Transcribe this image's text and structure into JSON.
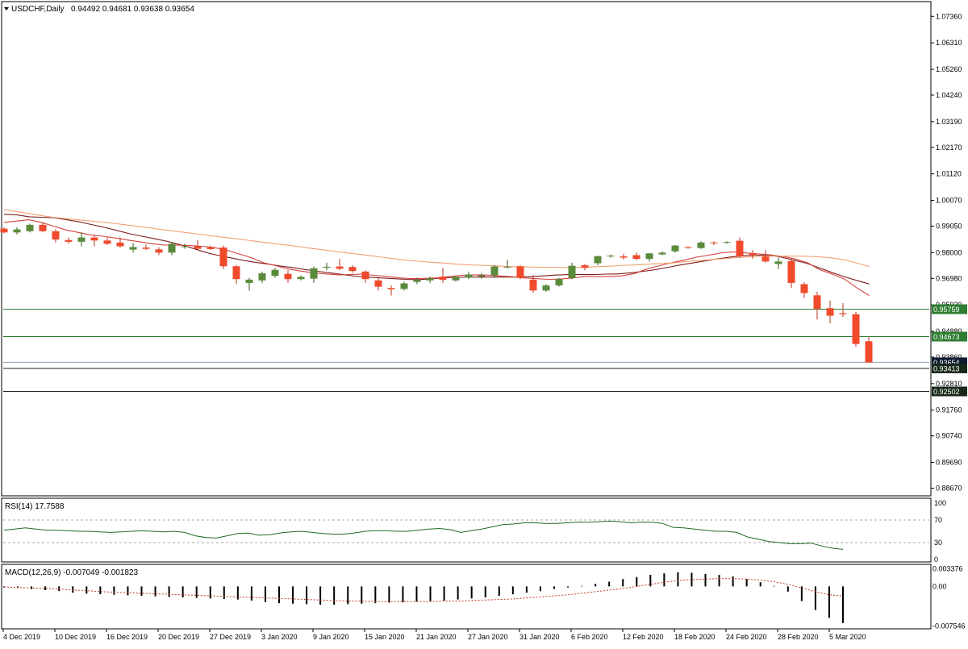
{
  "header": {
    "symbol": "USDCHF,Daily",
    "ohlc": "0.94492 0.94681 0.93638 0.93654"
  },
  "rsi_header": "RSI(14) 17.7588",
  "macd_header": "MACD(12,26,9) -0.007049 -0.001823",
  "colors": {
    "bull": "#5a8a3c",
    "bear": "#f04a2d",
    "level_line": "#2e7d32",
    "ma_slow": "#7b1d1d",
    "ma_mid": "#d2423b",
    "ma_fast": "#f0a070",
    "rsi": "#1f6b1f",
    "macd_bar": "#000000",
    "macd_signal": "#c0392b"
  },
  "chart_data": [
    {
      "type": "candlestick",
      "ylim": [
        0.8843,
        1.0788
      ],
      "y_ticks": [
        "1.07360",
        "1.06310",
        "1.05260",
        "1.04240",
        "1.03190",
        "1.02170",
        "1.01120",
        "1.00070",
        "0.99050",
        "0.98000",
        "0.96980",
        "0.95930",
        "0.94880",
        "0.93860",
        "0.92810",
        "0.91760",
        "0.90740",
        "0.89690",
        "0.88670"
      ],
      "x_labels": [
        "4 Dec 2019",
        "10 Dec 2019",
        "16 Dec 2019",
        "20 Dec 2019",
        "27 Dec 2019",
        "3 Jan 2020",
        "9 Jan 2020",
        "15 Jan 2020",
        "21 Jan 2020",
        "27 Jan 2020",
        "31 Jan 2020",
        "6 Feb 2020",
        "12 Feb 2020",
        "18 Feb 2020",
        "24 Feb 2020",
        "28 Feb 2020",
        "5 Mar 2020"
      ],
      "candles": [
        [
          0.9895,
          0.99,
          0.9876,
          0.988
        ],
        [
          0.988,
          0.99,
          0.9872,
          0.9892
        ],
        [
          0.9885,
          0.9915,
          0.988,
          0.991
        ],
        [
          0.991,
          0.992,
          0.988,
          0.9885
        ],
        [
          0.9885,
          0.9892,
          0.984,
          0.9852
        ],
        [
          0.985,
          0.986,
          0.9836,
          0.9843
        ],
        [
          0.9843,
          0.988,
          0.9825,
          0.986
        ],
        [
          0.986,
          0.987,
          0.9825,
          0.9848
        ],
        [
          0.9848,
          0.986,
          0.983,
          0.9835
        ],
        [
          0.984,
          0.986,
          0.982,
          0.9825
        ],
        [
          0.9812,
          0.9838,
          0.98,
          0.9822
        ],
        [
          0.982,
          0.9832,
          0.981,
          0.9815
        ],
        [
          0.9813,
          0.9822,
          0.979,
          0.98
        ],
        [
          0.98,
          0.984,
          0.979,
          0.9835
        ],
        [
          0.9825,
          0.9835,
          0.9815,
          0.9825
        ],
        [
          0.9825,
          0.985,
          0.9812,
          0.9815
        ],
        [
          0.982,
          0.9828,
          0.981,
          0.9814
        ],
        [
          0.982,
          0.9828,
          0.9735,
          0.9746
        ],
        [
          0.9746,
          0.975,
          0.9675,
          0.9695
        ],
        [
          0.968,
          0.97,
          0.965,
          0.9693
        ],
        [
          0.969,
          0.9725,
          0.968,
          0.9718
        ],
        [
          0.9708,
          0.974,
          0.97,
          0.9732
        ],
        [
          0.9716,
          0.973,
          0.968,
          0.9695
        ],
        [
          0.9695,
          0.971,
          0.969,
          0.9704
        ],
        [
          0.9697,
          0.9745,
          0.968,
          0.9738
        ],
        [
          0.974,
          0.976,
          0.973,
          0.9744
        ],
        [
          0.9745,
          0.9775,
          0.973,
          0.9736
        ],
        [
          0.9743,
          0.975,
          0.972,
          0.9727
        ],
        [
          0.9725,
          0.973,
          0.968,
          0.9695
        ],
        [
          0.969,
          0.97,
          0.965,
          0.9665
        ],
        [
          0.966,
          0.967,
          0.963,
          0.9655
        ],
        [
          0.9656,
          0.9685,
          0.965,
          0.9678
        ],
        [
          0.9684,
          0.97,
          0.9675,
          0.9692
        ],
        [
          0.969,
          0.9705,
          0.968,
          0.9698
        ],
        [
          0.9705,
          0.974,
          0.968,
          0.9692
        ],
        [
          0.969,
          0.9708,
          0.9685,
          0.9705
        ],
        [
          0.9701,
          0.9725,
          0.9695,
          0.9713
        ],
        [
          0.9705,
          0.972,
          0.9697,
          0.971
        ],
        [
          0.971,
          0.975,
          0.97,
          0.9745
        ],
        [
          0.9743,
          0.9772,
          0.9738,
          0.9744
        ],
        [
          0.9746,
          0.975,
          0.9695,
          0.97
        ],
        [
          0.9693,
          0.971,
          0.964,
          0.965
        ],
        [
          0.965,
          0.9675,
          0.9645,
          0.967
        ],
        [
          0.967,
          0.97,
          0.9665,
          0.9695
        ],
        [
          0.97,
          0.976,
          0.9695,
          0.9748
        ],
        [
          0.975,
          0.9755,
          0.973,
          0.974
        ],
        [
          0.9758,
          0.9788,
          0.975,
          0.9786
        ],
        [
          0.9786,
          0.9792,
          0.978,
          0.9788
        ],
        [
          0.9785,
          0.9795,
          0.9772,
          0.978
        ],
        [
          0.979,
          0.98,
          0.977,
          0.9775
        ],
        [
          0.9775,
          0.9798,
          0.9765,
          0.9797
        ],
        [
          0.9793,
          0.9805,
          0.979,
          0.98
        ],
        [
          0.9805,
          0.983,
          0.98,
          0.9828
        ],
        [
          0.9822,
          0.9825,
          0.9815,
          0.982
        ],
        [
          0.9818,
          0.9845,
          0.9815,
          0.984
        ],
        [
          0.984,
          0.9845,
          0.983,
          0.9838
        ],
        [
          0.9842,
          0.9845,
          0.9835,
          0.9842
        ],
        [
          0.9847,
          0.986,
          0.978,
          0.9785
        ],
        [
          0.9798,
          0.981,
          0.9775,
          0.979
        ],
        [
          0.9785,
          0.981,
          0.976,
          0.9765
        ],
        [
          0.9755,
          0.978,
          0.9735,
          0.9765
        ],
        [
          0.9767,
          0.9775,
          0.966,
          0.968
        ],
        [
          0.9675,
          0.9683,
          0.962,
          0.964
        ],
        [
          0.9631,
          0.9645,
          0.9535,
          0.9577
        ],
        [
          0.958,
          0.961,
          0.952,
          0.955
        ],
        [
          0.956,
          0.96,
          0.9545,
          0.9556
        ],
        [
          0.9556,
          0.9565,
          0.9428,
          0.9438
        ],
        [
          0.9449,
          0.9468,
          0.9364,
          0.9365
        ]
      ],
      "moving_averages": [
        {
          "color_key": "ma_slow",
          "values": [
            0.9952,
            0.995,
            0.9942,
            0.994,
            0.9938,
            0.993,
            0.9922,
            0.9911,
            0.99,
            0.9888,
            0.9875,
            0.9865,
            0.9855,
            0.9845,
            0.9832,
            0.9818,
            0.9802,
            0.979,
            0.978,
            0.977,
            0.9762,
            0.9755,
            0.9747,
            0.9741,
            0.9733,
            0.9726,
            0.972,
            0.9713,
            0.9707,
            0.9703,
            0.97,
            0.9697,
            0.9694,
            0.9693,
            0.9696,
            0.97,
            0.9702,
            0.9703,
            0.9703,
            0.9703,
            0.9703,
            0.9703,
            0.9705,
            0.9708,
            0.9711,
            0.9713,
            0.9713,
            0.9713,
            0.9715,
            0.9716,
            0.972,
            0.9726,
            0.9733,
            0.9742,
            0.9752,
            0.976,
            0.9768,
            0.9776,
            0.9783,
            0.9788,
            0.979,
            0.979,
            0.9782,
            0.977,
            0.9758,
            0.974,
            0.9722,
            0.9705,
            0.969,
            0.9676
          ]
        },
        {
          "color_key": "ma_mid",
          "values": [
            0.992,
            0.9925,
            0.993,
            0.992,
            0.9905,
            0.989,
            0.988,
            0.987,
            0.9865,
            0.9858,
            0.985,
            0.9843,
            0.9835,
            0.983,
            0.983,
            0.9828,
            0.9825,
            0.982,
            0.981,
            0.9795,
            0.978,
            0.976,
            0.9748,
            0.9735,
            0.9727,
            0.972,
            0.9716,
            0.9712,
            0.9713,
            0.9715,
            0.971,
            0.9706,
            0.97,
            0.9697,
            0.9698,
            0.97,
            0.9705,
            0.971,
            0.9712,
            0.9711,
            0.9708,
            0.9705,
            0.97,
            0.9697,
            0.9694,
            0.9695,
            0.97,
            0.9705,
            0.9705,
            0.9706,
            0.9708,
            0.9717,
            0.9735,
            0.9748,
            0.976,
            0.977,
            0.9782,
            0.979,
            0.9799,
            0.9803,
            0.9799,
            0.9795,
            0.9791,
            0.9785,
            0.9775,
            0.976,
            0.9732,
            0.9715,
            0.9695,
            0.966,
            0.963
          ]
        },
        {
          "color_key": "ma_fast",
          "values": [
            0.997,
            0.9963,
            0.9955,
            0.9947,
            0.994,
            0.9935,
            0.993,
            0.9926,
            0.9921,
            0.9916,
            0.991,
            0.9904,
            0.9898,
            0.9891,
            0.9885,
            0.9879,
            0.9873,
            0.9867,
            0.9861,
            0.9855,
            0.9849,
            0.9843,
            0.9837,
            0.9831,
            0.9825,
            0.9818,
            0.9812,
            0.9806,
            0.98,
            0.9794,
            0.9788,
            0.9782,
            0.9776,
            0.977,
            0.9766,
            0.9762,
            0.9759,
            0.9755,
            0.9752,
            0.975,
            0.9748,
            0.9746,
            0.9744,
            0.9743,
            0.9742,
            0.9742,
            0.9741,
            0.9741,
            0.9743,
            0.9745,
            0.9747,
            0.975,
            0.9752,
            0.9755,
            0.9757,
            0.976,
            0.9765,
            0.9768,
            0.9772,
            0.9776,
            0.978,
            0.9783,
            0.9785,
            0.9786,
            0.9786,
            0.9786,
            0.9785,
            0.9783,
            0.9778,
            0.9771,
            0.9758,
            0.9745
          ]
        }
      ],
      "levels": [
        {
          "value": 0.95759,
          "label": "0.95759",
          "style": "green"
        },
        {
          "value": 0.94673,
          "label": "0.94673",
          "style": "green"
        },
        {
          "value": 0.93654,
          "label": "0.93654",
          "style": "current"
        },
        {
          "value": 0.93413,
          "label": "0.93413",
          "style": "dark"
        },
        {
          "value": 0.92502,
          "label": "0.92502",
          "style": "dark"
        }
      ]
    },
    {
      "type": "line",
      "name": "RSI(14)",
      "ylim": [
        0,
        100
      ],
      "y_ticks": [
        "100",
        "70",
        "30",
        "0"
      ],
      "reference_levels": [
        70,
        30
      ],
      "values": [
        52,
        54,
        56,
        54,
        52,
        52,
        51,
        50,
        50,
        49,
        48,
        49,
        50,
        51,
        50,
        49,
        50,
        48,
        42,
        39,
        38,
        42,
        46,
        47,
        43,
        44,
        47,
        49,
        50,
        48,
        46,
        45,
        45,
        47,
        50,
        51,
        51,
        50,
        50,
        52,
        54,
        55,
        53,
        48,
        51,
        54,
        58,
        62,
        63,
        65,
        65,
        64,
        64,
        65,
        66,
        66,
        67,
        68,
        67,
        65,
        66,
        66,
        64,
        57,
        56,
        54,
        52,
        50,
        50,
        48,
        40,
        36,
        32,
        30,
        28,
        28,
        29,
        24,
        20,
        18
      ]
    },
    {
      "type": "bar",
      "name": "MACD(12,26,9)",
      "y_ticks": [
        "0.003376",
        "0.00",
        "-0.007546"
      ],
      "ylim": [
        -0.0078,
        0.0036
      ],
      "values": [
        -0.0002,
        -0.0003,
        -0.0005,
        -0.0007,
        -0.0009,
        -0.0012,
        -0.0014,
        -0.0015,
        -0.0016,
        -0.0017,
        -0.0018,
        -0.0019,
        -0.002,
        -0.0021,
        -0.0022,
        -0.0023,
        -0.0024,
        -0.0025,
        -0.0027,
        -0.003,
        -0.0032,
        -0.0033,
        -0.0034,
        -0.0035,
        -0.0035,
        -0.0034,
        -0.0033,
        -0.0032,
        -0.0031,
        -0.003,
        -0.0029,
        -0.0028,
        -0.0027,
        -0.0025,
        -0.0023,
        -0.0021,
        -0.0018,
        -0.0015,
        -0.0012,
        -0.0009,
        -0.0005,
        -0.0002,
        0.0001,
        0.0005,
        0.0009,
        0.0014,
        0.0018,
        0.0022,
        0.0025,
        0.0027,
        0.0026,
        0.0024,
        0.0022,
        0.0019,
        0.0014,
        0.0008,
        0.0001,
        -0.001,
        -0.0028,
        -0.0045,
        -0.006,
        -0.007
      ],
      "signal": [
        -0.0001,
        -0.0002,
        -0.0003,
        -0.0004,
        -0.0005,
        -0.0007,
        -0.0008,
        -0.001,
        -0.0011,
        -0.0012,
        -0.0013,
        -0.0014,
        -0.0015,
        -0.0016,
        -0.0017,
        -0.0018,
        -0.0019,
        -0.002,
        -0.0021,
        -0.0022,
        -0.0023,
        -0.0024,
        -0.0025,
        -0.0026,
        -0.0027,
        -0.0028,
        -0.0028,
        -0.0029,
        -0.0029,
        -0.0029,
        -0.0029,
        -0.0029,
        -0.0028,
        -0.0028,
        -0.0027,
        -0.0026,
        -0.0025,
        -0.0024,
        -0.0022,
        -0.002,
        -0.0018,
        -0.0016,
        -0.0013,
        -0.001,
        -0.0007,
        -0.0004,
        0.0,
        0.0004,
        0.0008,
        0.0011,
        0.0013,
        0.0014,
        0.0015,
        0.0015,
        0.0014,
        0.0012,
        0.0009,
        0.0004,
        -0.0003,
        -0.001,
        -0.0016,
        -0.0018
      ]
    }
  ]
}
